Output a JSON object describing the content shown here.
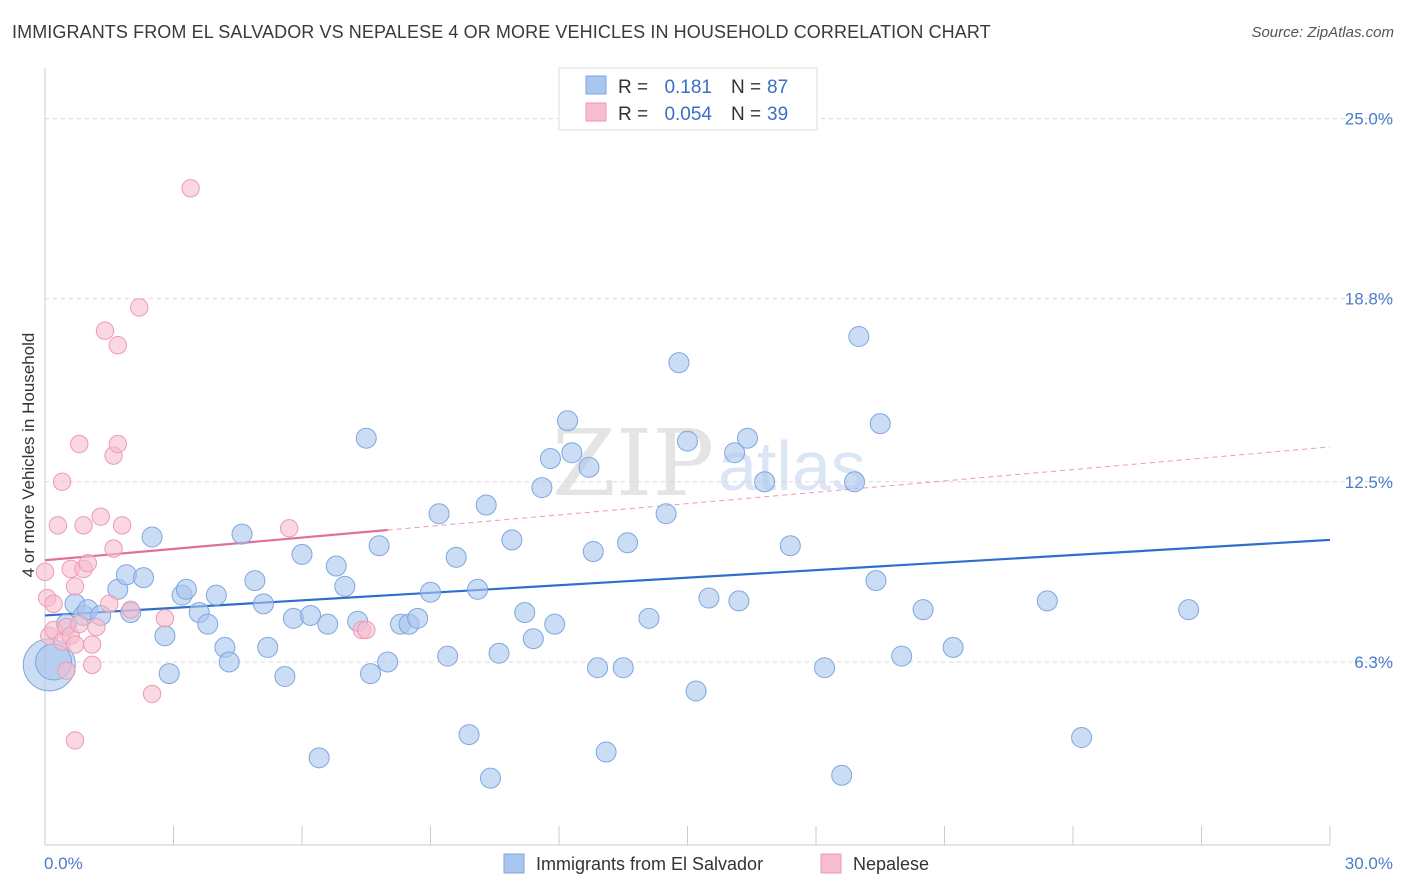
{
  "title": "IMMIGRANTS FROM EL SALVADOR VS NEPALESE 4 OR MORE VEHICLES IN HOUSEHOLD CORRELATION CHART",
  "source": "Source: ZipAtlas.com",
  "watermark": {
    "zip": "ZIP",
    "atlas": "atlas"
  },
  "legend": {
    "r_label": "R =",
    "n_label": "N =",
    "rows": [
      {
        "r": "0.181",
        "n": "87"
      },
      {
        "r": "0.054",
        "n": "39"
      }
    ]
  },
  "chart_data": {
    "type": "scatter",
    "xlabel": "",
    "ylabel": "4 or more Vehicles in Household",
    "xlim": [
      0,
      30
    ],
    "ylim": [
      0,
      26.5
    ],
    "x_tick_labels": [
      "0.0%",
      "30.0%"
    ],
    "y_ticks": [
      6.3,
      12.5,
      18.8,
      25.0
    ],
    "y_tick_labels": [
      "6.3%",
      "12.5%",
      "18.8%",
      "25.0%"
    ],
    "grid": true,
    "legend_position": "top-center",
    "colors": {
      "series1_fill": "#a9c6ef",
      "series1_stroke": "#7ea6de",
      "series1_line": "#2e6fcc",
      "series2_fill": "#f7bccd",
      "series2_stroke": "#ef9ab4",
      "series2_line": "#e0709a",
      "grid": "#d9d9d9",
      "axis": "#cccccc"
    },
    "series": [
      {
        "name": "Immigrants from El Salvador",
        "r": 0.181,
        "n": 87,
        "trend": {
          "x": [
            0,
            30
          ],
          "y": [
            7.9,
            10.5
          ],
          "dashed_from": null
        },
        "points": [
          [
            0.1,
            6.2,
            26
          ],
          [
            0.2,
            6.3,
            18
          ],
          [
            0.5,
            7.6,
            10
          ],
          [
            0.7,
            8.3,
            10
          ],
          [
            0.9,
            7.9,
            10
          ],
          [
            1.0,
            8.1,
            10
          ],
          [
            1.3,
            7.9,
            10
          ],
          [
            1.7,
            8.8,
            10
          ],
          [
            1.9,
            9.3,
            10
          ],
          [
            2.0,
            8.0,
            10
          ],
          [
            2.3,
            9.2,
            10
          ],
          [
            2.5,
            10.6,
            10
          ],
          [
            2.8,
            7.2,
            10
          ],
          [
            2.9,
            5.9,
            10
          ],
          [
            3.2,
            8.6,
            10
          ],
          [
            3.3,
            8.8,
            10
          ],
          [
            3.6,
            8.0,
            10
          ],
          [
            3.8,
            7.6,
            10
          ],
          [
            4.0,
            8.6,
            10
          ],
          [
            4.2,
            6.8,
            10
          ],
          [
            4.3,
            6.3,
            10
          ],
          [
            4.6,
            10.7,
            10
          ],
          [
            4.9,
            9.1,
            10
          ],
          [
            5.1,
            8.3,
            10
          ],
          [
            5.2,
            6.8,
            10
          ],
          [
            5.6,
            5.8,
            10
          ],
          [
            5.8,
            7.8,
            10
          ],
          [
            6.0,
            10.0,
            10
          ],
          [
            6.2,
            7.9,
            10
          ],
          [
            6.4,
            3.0,
            10
          ],
          [
            6.6,
            7.6,
            10
          ],
          [
            6.8,
            9.6,
            10
          ],
          [
            7.0,
            8.9,
            10
          ],
          [
            7.3,
            7.7,
            10
          ],
          [
            7.5,
            14.0,
            10
          ],
          [
            7.6,
            5.9,
            10
          ],
          [
            7.8,
            10.3,
            10
          ],
          [
            8.0,
            6.3,
            10
          ],
          [
            8.3,
            7.6,
            10
          ],
          [
            8.5,
            7.6,
            10
          ],
          [
            8.7,
            7.8,
            10
          ],
          [
            9.0,
            8.7,
            10
          ],
          [
            9.2,
            11.4,
            10
          ],
          [
            9.4,
            6.5,
            10
          ],
          [
            9.6,
            9.9,
            10
          ],
          [
            9.9,
            3.8,
            10
          ],
          [
            10.1,
            8.8,
            10
          ],
          [
            10.3,
            11.7,
            10
          ],
          [
            10.4,
            2.3,
            10
          ],
          [
            10.6,
            6.6,
            10
          ],
          [
            10.9,
            10.5,
            10
          ],
          [
            11.2,
            8.0,
            10
          ],
          [
            11.4,
            7.1,
            10
          ],
          [
            11.6,
            12.3,
            10
          ],
          [
            11.8,
            13.3,
            10
          ],
          [
            11.9,
            7.6,
            10
          ],
          [
            12.2,
            14.6,
            10
          ],
          [
            12.3,
            13.5,
            10
          ],
          [
            12.7,
            13.0,
            10
          ],
          [
            12.8,
            10.1,
            10
          ],
          [
            12.9,
            6.1,
            10
          ],
          [
            13.1,
            3.2,
            10
          ],
          [
            13.5,
            6.1,
            10
          ],
          [
            13.6,
            10.4,
            10
          ],
          [
            14.1,
            7.8,
            10
          ],
          [
            14.5,
            11.4,
            10
          ],
          [
            14.8,
            16.6,
            10
          ],
          [
            15.0,
            13.9,
            10
          ],
          [
            15.2,
            5.3,
            10
          ],
          [
            15.5,
            8.5,
            10
          ],
          [
            16.1,
            13.5,
            10
          ],
          [
            16.2,
            8.4,
            10
          ],
          [
            16.4,
            14.0,
            10
          ],
          [
            16.8,
            12.5,
            10
          ],
          [
            17.4,
            10.3,
            10
          ],
          [
            18.2,
            6.1,
            10
          ],
          [
            18.6,
            2.4,
            10
          ],
          [
            18.9,
            12.5,
            10
          ],
          [
            19.0,
            17.5,
            10
          ],
          [
            19.4,
            9.1,
            10
          ],
          [
            19.5,
            14.5,
            10
          ],
          [
            20.0,
            6.5,
            10
          ],
          [
            20.5,
            8.1,
            10
          ],
          [
            21.2,
            6.8,
            10
          ],
          [
            23.4,
            8.4,
            10
          ],
          [
            24.2,
            3.7,
            10
          ],
          [
            26.7,
            8.1,
            10
          ]
        ]
      },
      {
        "name": "Nepalese",
        "r": 0.054,
        "n": 39,
        "trend": {
          "x": [
            0,
            30
          ],
          "y": [
            9.8,
            13.7
          ],
          "dashed_from": 8.0
        },
        "points": [
          [
            0.0,
            9.4,
            10
          ],
          [
            0.05,
            8.5,
            10
          ],
          [
            0.1,
            7.2,
            10
          ],
          [
            0.2,
            8.3,
            10
          ],
          [
            0.2,
            7.4,
            10
          ],
          [
            0.3,
            11.0,
            10
          ],
          [
            0.4,
            7.0,
            10
          ],
          [
            0.4,
            12.5,
            10
          ],
          [
            0.5,
            6.0,
            10
          ],
          [
            0.5,
            7.5,
            10
          ],
          [
            0.6,
            7.2,
            10
          ],
          [
            0.6,
            9.5,
            10
          ],
          [
            0.7,
            8.9,
            10
          ],
          [
            0.7,
            6.9,
            10
          ],
          [
            0.7,
            3.6,
            10
          ],
          [
            0.8,
            7.6,
            10
          ],
          [
            0.8,
            13.8,
            10
          ],
          [
            0.9,
            9.5,
            10
          ],
          [
            0.9,
            11.0,
            10
          ],
          [
            1.0,
            9.7,
            10
          ],
          [
            1.1,
            6.9,
            10
          ],
          [
            1.1,
            6.2,
            10
          ],
          [
            1.3,
            11.3,
            10
          ],
          [
            1.4,
            17.7,
            10
          ],
          [
            1.5,
            8.3,
            10
          ],
          [
            1.6,
            10.2,
            10
          ],
          [
            1.6,
            13.4,
            10
          ],
          [
            1.7,
            17.2,
            10
          ],
          [
            1.7,
            13.8,
            10
          ],
          [
            1.8,
            11.0,
            10
          ],
          [
            2.0,
            8.1,
            10
          ],
          [
            2.2,
            18.5,
            10
          ],
          [
            2.5,
            5.2,
            10
          ],
          [
            2.8,
            7.8,
            10
          ],
          [
            3.4,
            22.6,
            10
          ],
          [
            5.7,
            10.9,
            10
          ],
          [
            7.4,
            7.4,
            10
          ],
          [
            7.5,
            7.4,
            10
          ],
          [
            1.2,
            7.5,
            10
          ]
        ]
      }
    ]
  }
}
